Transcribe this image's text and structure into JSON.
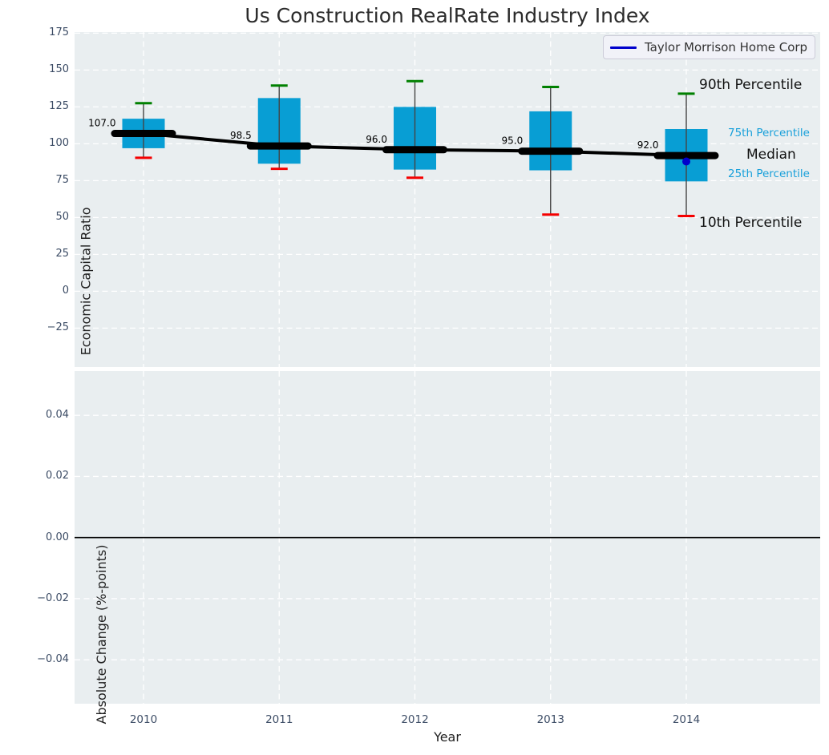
{
  "title": "Us Construction RealRate Industry Index",
  "legend": {
    "label": "Taylor Morrison Home Corp"
  },
  "annotations": {
    "p90": "90th Percentile",
    "p75": "75th Percentile",
    "median": "Median",
    "p25": "25th Percentile",
    "p10": "10th Percentile"
  },
  "colors": {
    "plot_bg": "#e9eef0",
    "grid": "#ffffff",
    "box": "#089ed4",
    "p90_cap": "#008000",
    "p10_cap": "#f50000",
    "whisker": "#444444",
    "trend": "#000000",
    "company": "#0000cc",
    "tick_label": "#3d4d66",
    "pct_label_blue": "#18a0da"
  },
  "x_axis": {
    "label": "Year",
    "ticks": [
      "2010",
      "2011",
      "2012",
      "2013",
      "2014"
    ]
  },
  "chart_data": [
    {
      "type": "boxplot",
      "panel": "top",
      "title": "Us Construction RealRate Industry Index",
      "ylabel": "Economic Capital Ratio",
      "xlabel": "Year",
      "ylim": [
        -51,
        175.5
      ],
      "ytick_labels": [
        "175",
        "150",
        "125",
        "100",
        "75",
        "50",
        "25",
        "0",
        "−25"
      ],
      "ytick_values": [
        175,
        150,
        125,
        100,
        75,
        50,
        25,
        0,
        -25
      ],
      "grid": "dashed-white",
      "legend_position": "upper right",
      "categories": [
        2010,
        2011,
        2012,
        2013,
        2014
      ],
      "boxes": [
        {
          "year": 2010,
          "p10": 90.5,
          "q1": 97.0,
          "median": 107.0,
          "q3": 117.0,
          "p90": 127.5,
          "median_label": "107.0"
        },
        {
          "year": 2011,
          "p10": 83.0,
          "q1": 86.5,
          "median": 98.5,
          "q3": 131.0,
          "p90": 139.5,
          "median_label": "98.5"
        },
        {
          "year": 2012,
          "p10": 77.0,
          "q1": 82.5,
          "median": 96.0,
          "q3": 125.0,
          "p90": 142.5,
          "median_label": "96.0"
        },
        {
          "year": 2013,
          "p10": 52.0,
          "q1": 82.0,
          "median": 95.0,
          "q3": 122.0,
          "p90": 138.5,
          "median_label": "95.0"
        },
        {
          "year": 2014,
          "p10": 51.0,
          "q1": 74.5,
          "median": 92.0,
          "q3": 110.0,
          "p90": 134.0,
          "median_label": "92.0"
        }
      ],
      "median_trend": [
        107.0,
        98.5,
        96.0,
        95.0,
        92.0
      ],
      "series": [
        {
          "name": "Taylor Morrison Home Corp",
          "points": [
            {
              "year": 2014,
              "value": 88
            }
          ]
        }
      ]
    },
    {
      "type": "line",
      "panel": "bottom",
      "ylabel": "Absolute Change (%-points)",
      "ylim": [
        -0.0545,
        0.0545
      ],
      "ytick_labels": [
        "0.04",
        "0.02",
        "0.00",
        "−0.02",
        "−0.04"
      ],
      "ytick_values": [
        0.04,
        0.02,
        0.0,
        -0.02,
        -0.04
      ],
      "grid": "dashed-white",
      "zero_line": true,
      "categories": [
        2010,
        2011,
        2012,
        2013,
        2014
      ],
      "values": []
    }
  ]
}
